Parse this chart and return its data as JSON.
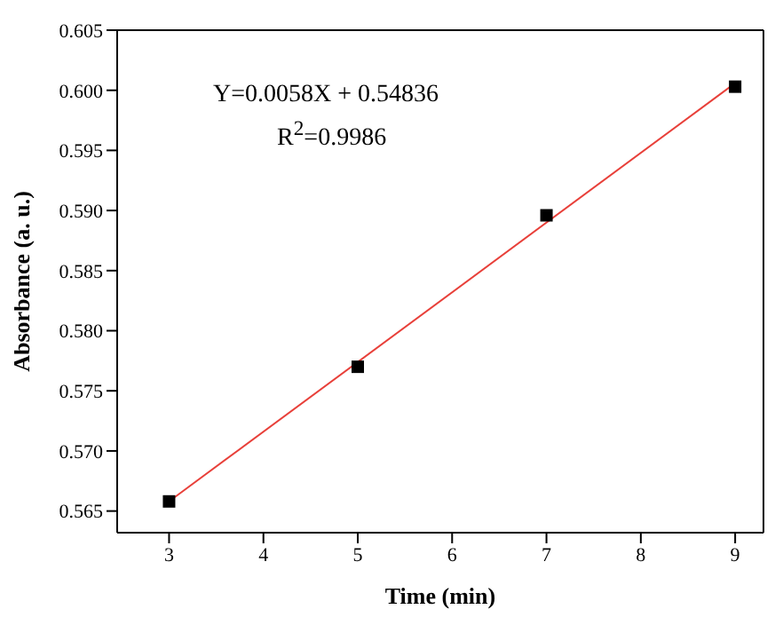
{
  "chart_data": {
    "type": "scatter",
    "xlabel": "Time (min)",
    "ylabel": "Absorbance (a. u.)",
    "annotations": [
      "Y=0.0058X + 0.54836",
      "R$^{2}$=0.9986"
    ],
    "x": [
      3,
      5,
      7,
      9
    ],
    "series": [
      {
        "color": "#000000",
        "marker": "square",
        "values": [
          0.5658,
          0.577,
          0.5896,
          0.6003
        ]
      },
      {
        "type": "line",
        "color": "#e8403a",
        "x": [
          3,
          9
        ],
        "values": [
          0.5658,
          0.6006
        ]
      }
    ],
    "xlim": [
      2.45,
      9.3
    ],
    "xticks": [
      3,
      4,
      5,
      6,
      7,
      8,
      9
    ],
    "ylim": [
      0.5632,
      0.605
    ],
    "yticks": [
      {
        "value": 0.565,
        "label": "0.565"
      },
      {
        "value": 0.57,
        "label": "0.570"
      },
      {
        "value": 0.575,
        "label": "0.575"
      },
      {
        "value": 0.58,
        "label": "0.580"
      },
      {
        "value": 0.585,
        "label": "0.585"
      },
      {
        "value": 0.59,
        "label": "0.590"
      },
      {
        "value": 0.595,
        "label": "0.595"
      },
      {
        "value": 0.6,
        "label": "0.600"
      },
      {
        "value": 0.605,
        "label": "0.605"
      }
    ],
    "grid": false,
    "legend": false
  }
}
